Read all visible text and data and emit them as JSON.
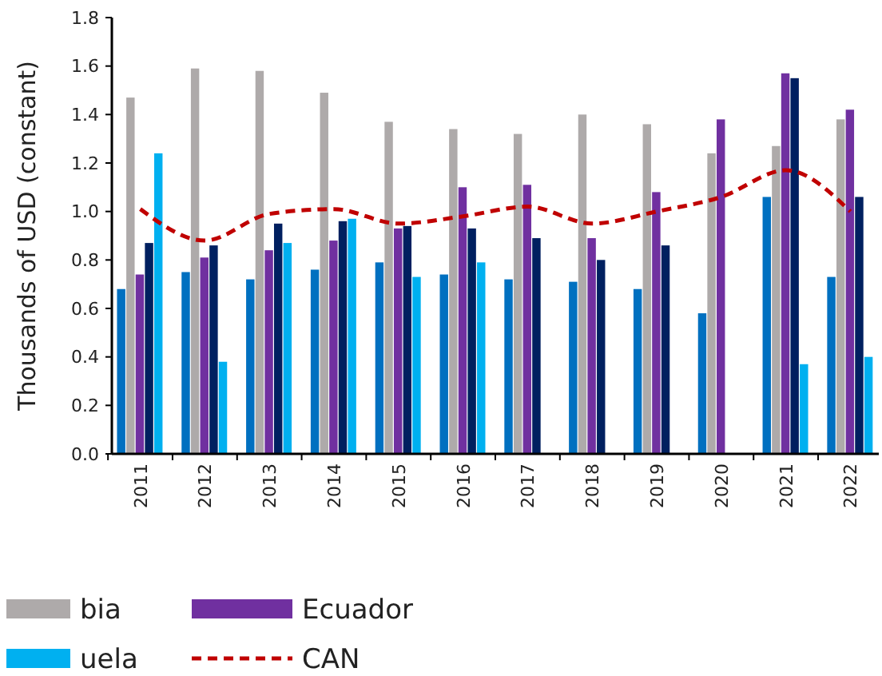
{
  "chart_data": {
    "type": "bar",
    "ylabel": "Thousands of USD (constant)",
    "categories": [
      "2011",
      "2012",
      "2013",
      "2014",
      "2015",
      "2016",
      "2017",
      "2018",
      "2019",
      "2020",
      "2021",
      "2022"
    ],
    "series": [
      {
        "color": "#0070c0",
        "values": [
          0.68,
          0.75,
          0.72,
          0.76,
          0.79,
          0.74,
          0.72,
          0.71,
          0.68,
          0.58,
          1.06,
          0.73
        ]
      },
      {
        "name": "bia",
        "color": "#aeaaaa",
        "values": [
          1.47,
          1.59,
          1.58,
          1.49,
          1.37,
          1.34,
          1.32,
          1.4,
          1.36,
          1.24,
          1.27,
          1.38
        ]
      },
      {
        "name": "Ecuador",
        "color": "#7030a0",
        "values": [
          0.74,
          0.81,
          0.84,
          0.88,
          0.93,
          1.1,
          1.11,
          0.89,
          1.08,
          1.38,
          1.57,
          1.42
        ]
      },
      {
        "color": "#002060",
        "values": [
          0.87,
          0.86,
          0.95,
          0.96,
          0.94,
          0.93,
          0.89,
          0.8,
          0.86,
          null,
          1.55,
          1.06
        ]
      },
      {
        "name": "uela",
        "color": "#00b0f0",
        "values": [
          1.24,
          0.38,
          0.87,
          0.97,
          0.73,
          0.79,
          null,
          null,
          null,
          null,
          0.37,
          0.4
        ]
      },
      {
        "name": "CAN",
        "type": "line",
        "color": "#c00000",
        "line_style": "dashed",
        "values": [
          1.01,
          0.88,
          0.99,
          1.01,
          0.95,
          0.98,
          1.02,
          0.95,
          1.0,
          1.06,
          1.17,
          1.0
        ]
      }
    ],
    "ylim": [
      0,
      1.8
    ],
    "yticks": [
      {
        "value": 0,
        "label": "0.0"
      },
      {
        "value": 0.2,
        "label": "0.2"
      },
      {
        "value": 0.4,
        "label": "0.4"
      },
      {
        "value": 0.6,
        "label": "0.6"
      },
      {
        "value": 0.8,
        "label": "0.8"
      },
      {
        "value": 1,
        "label": "1.0"
      },
      {
        "value": 1.2,
        "label": "1.2"
      },
      {
        "value": 1.4,
        "label": "1.4"
      },
      {
        "value": 1.6,
        "label": "1.6"
      },
      {
        "value": 1.8,
        "label": "1.8"
      }
    ],
    "grid": false,
    "legend": "bottom"
  }
}
